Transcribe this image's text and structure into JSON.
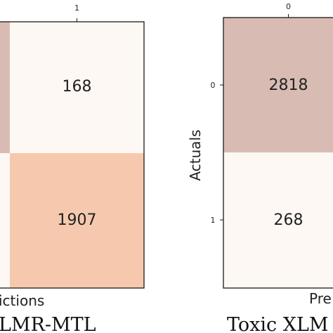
{
  "chart_data": [
    {
      "type": "heatmap",
      "title": "XLMR-MTL",
      "xlabel": "Predictions",
      "ylabel": "",
      "x_ticks": [
        "1"
      ],
      "y_ticks": [],
      "cells": [
        {
          "row": 0,
          "col": 0,
          "value": null,
          "color": "#d8bcb3"
        },
        {
          "row": 0,
          "col": 1,
          "value": 168,
          "color": "#fdf8f3"
        },
        {
          "row": 1,
          "col": 0,
          "value": null,
          "color": "#fdf8f3"
        },
        {
          "row": 1,
          "col": 1,
          "value": 1907,
          "color": "#f6c9ae"
        }
      ],
      "visible_text": {
        "xlabel_fragment": "ictions",
        "title_fragment": "LMR-MTL"
      }
    },
    {
      "type": "heatmap",
      "title": "Toxic XLM",
      "xlabel": "Pre",
      "ylabel": "Actuals",
      "x_ticks": [
        "0"
      ],
      "y_ticks": [
        "0",
        "1"
      ],
      "cells": [
        {
          "row": 0,
          "col": 0,
          "value": 2818,
          "color": "#d8bcb3"
        },
        {
          "row": 1,
          "col": 0,
          "value": 268,
          "color": "#fdf8f3"
        }
      ],
      "visible_text": {
        "xlabel_fragment": "Pre",
        "title_fragment": "Toxic XLM"
      }
    }
  ],
  "colors": {
    "frame": "#1a1a1a",
    "text": "#222222"
  }
}
